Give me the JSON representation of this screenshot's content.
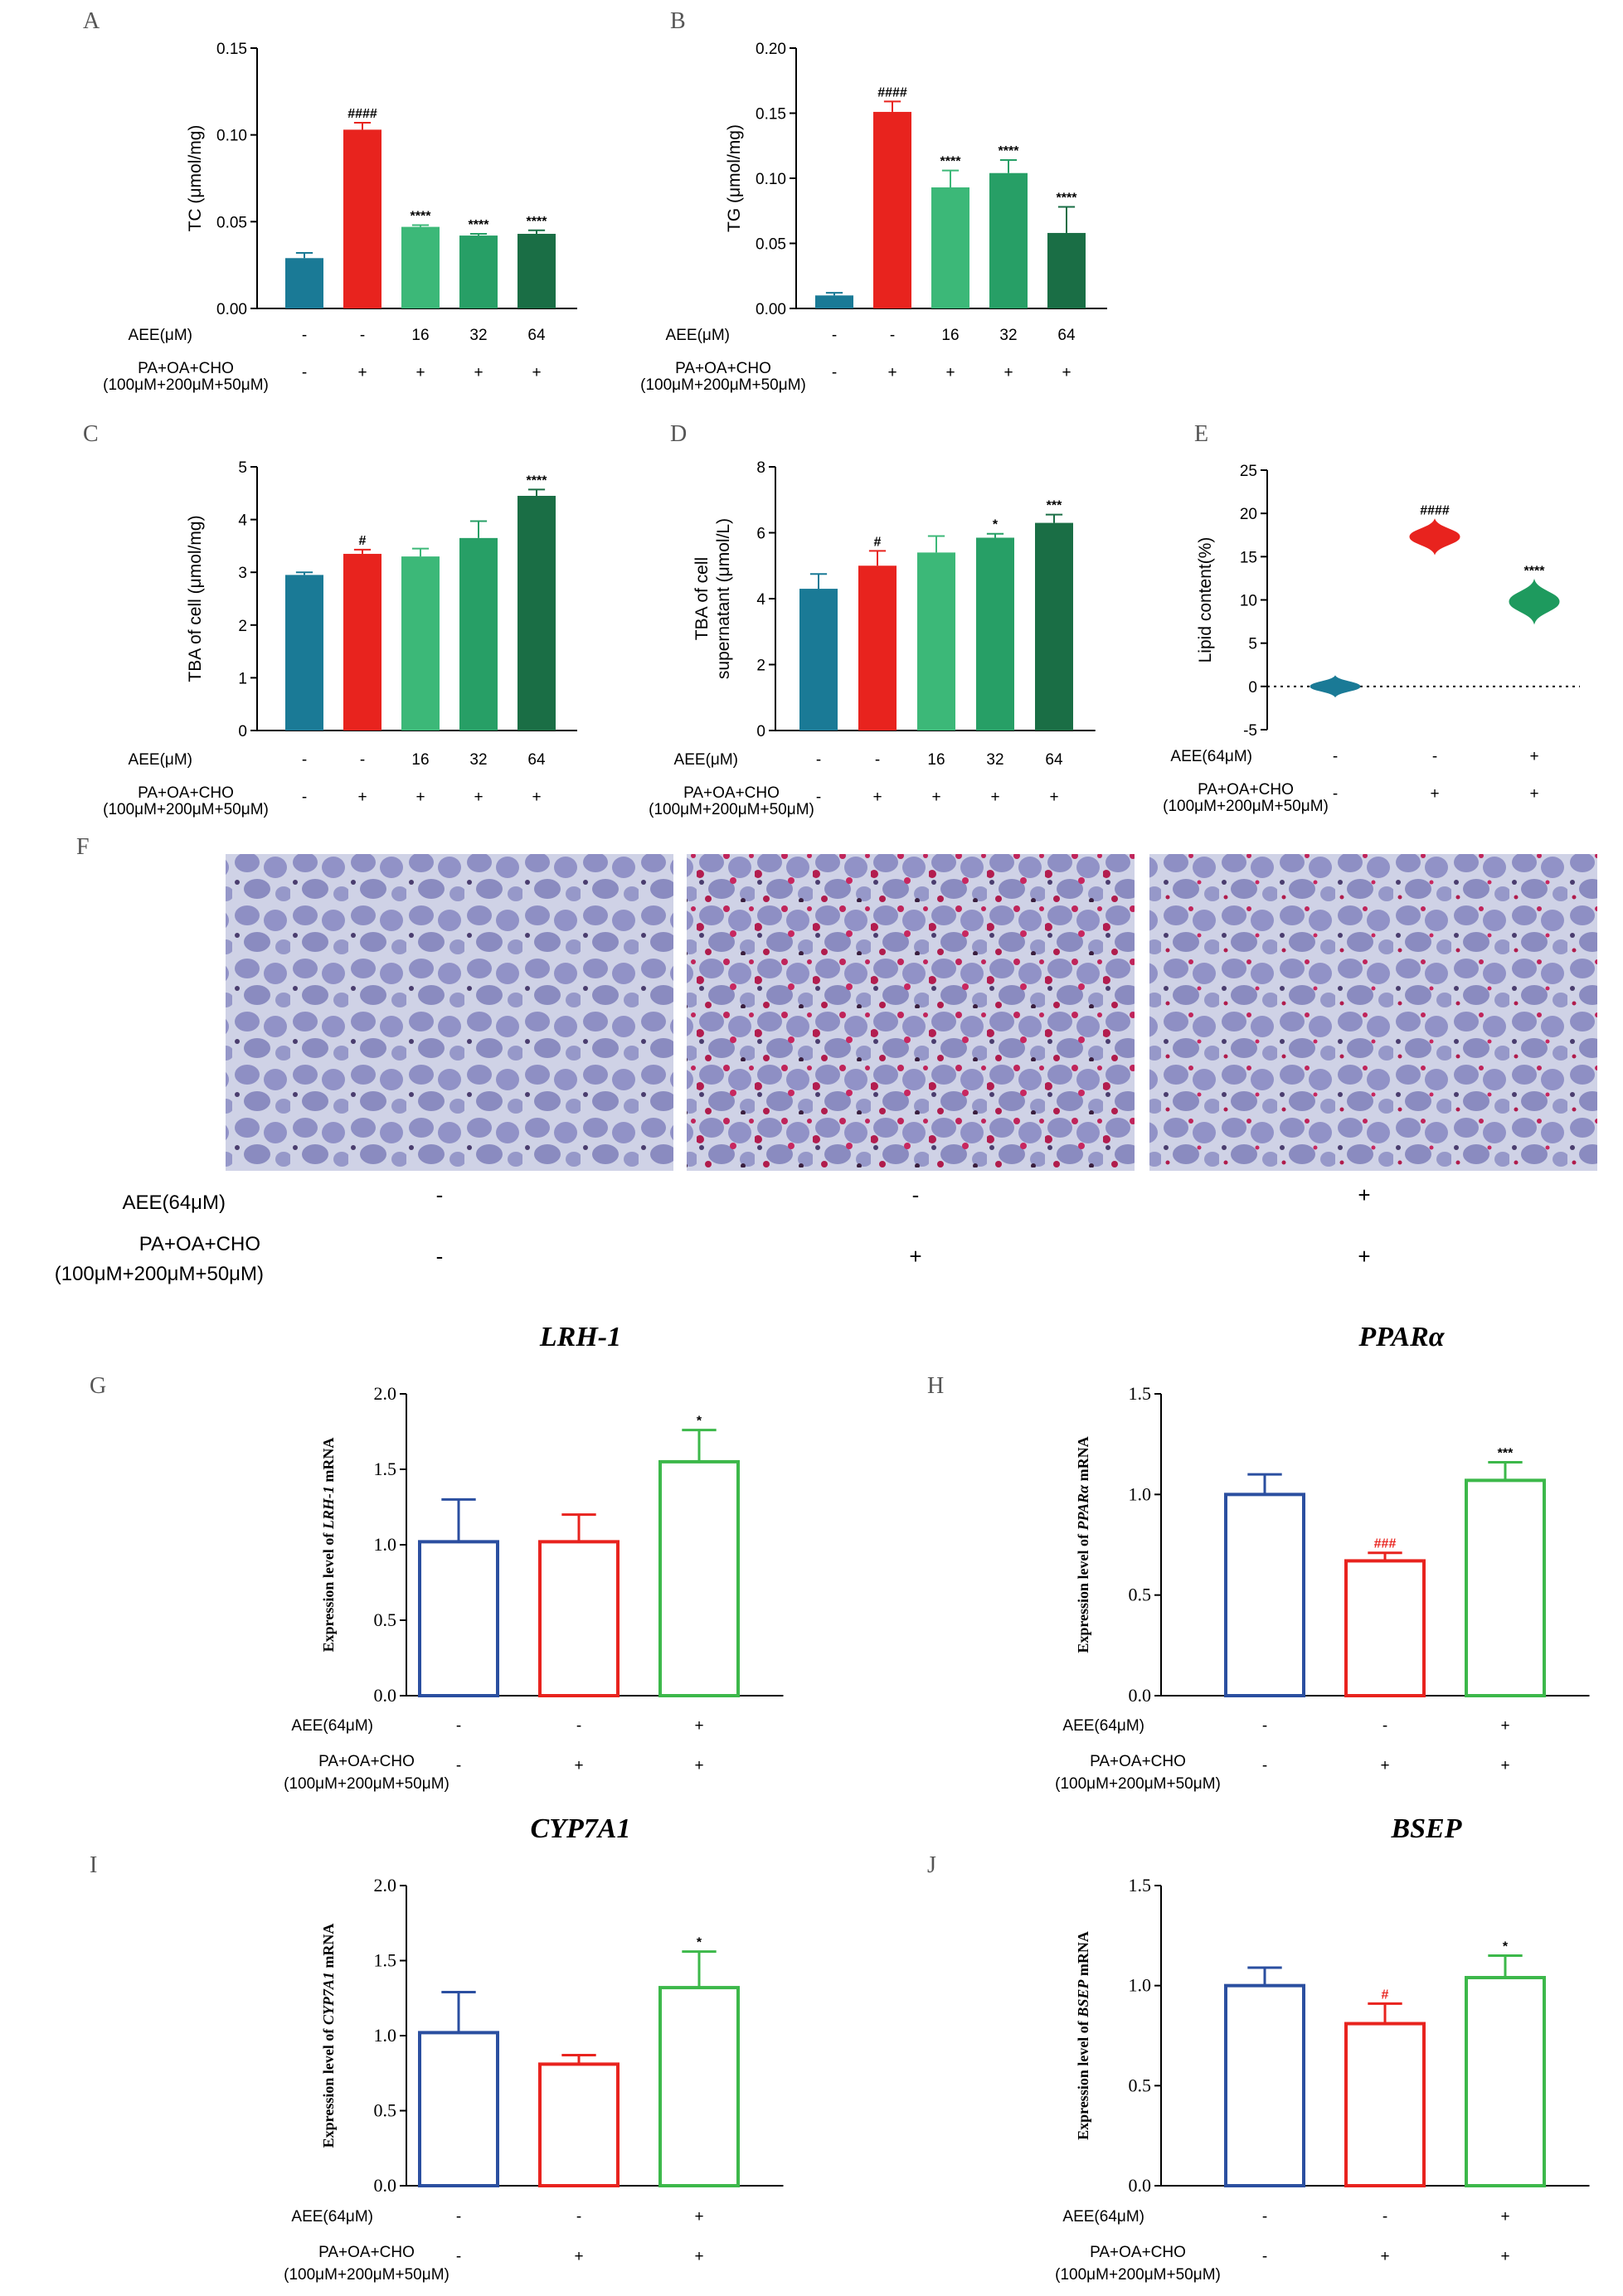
{
  "figure": {
    "micrograph_labels": {
      "aee": "AEE(64μM)",
      "pa1": "PA+OA+CHO",
      "pa2": "(100μM+200μM+50μM)"
    },
    "micrograph_marks": {
      "aee": [
        "-",
        "-",
        "+"
      ],
      "pa": [
        "-",
        "+",
        "+"
      ]
    },
    "panel_F_letter": "F"
  },
  "chart_data": [
    {
      "panel": "A",
      "type": "bar",
      "ylabel": "TC (μmol/mg)",
      "ylim": [
        0,
        0.15
      ],
      "yticks": [
        "0.00",
        "0.05",
        "0.10",
        "0.15"
      ],
      "values": [
        0.029,
        0.103,
        0.047,
        0.042,
        0.043
      ],
      "errors": [
        0.003,
        0.004,
        0.001,
        0.001,
        0.002
      ],
      "sig": [
        "",
        "####",
        "****",
        "****",
        "****"
      ],
      "colors": [
        "#1a7a96",
        "#e8231e",
        "#3cb878",
        "#279f66",
        "#1a6e45"
      ],
      "cond_labels": [
        "AEE(μM)",
        "PA+OA+CHO",
        "(100μM+200μM+50μM)"
      ],
      "aee": [
        "-",
        "-",
        "16",
        "32",
        "64"
      ],
      "pa": [
        "-",
        "+",
        "+",
        "+",
        "+"
      ],
      "style": "filled"
    },
    {
      "panel": "B",
      "type": "bar",
      "ylabel": "TG (μmol/mg)",
      "ylim": [
        0,
        0.2
      ],
      "yticks": [
        "0.00",
        "0.05",
        "0.10",
        "0.15",
        "0.20"
      ],
      "values": [
        0.01,
        0.151,
        0.093,
        0.104,
        0.058
      ],
      "errors": [
        0.002,
        0.008,
        0.013,
        0.01,
        0.02
      ],
      "sig": [
        "",
        "####",
        "****",
        "****",
        "****"
      ],
      "colors": [
        "#1a7a96",
        "#e8231e",
        "#3cb878",
        "#279f66",
        "#1a6e45"
      ],
      "cond_labels": [
        "AEE(μM)",
        "PA+OA+CHO",
        "(100μM+200μM+50μM)"
      ],
      "aee": [
        "-",
        "-",
        "16",
        "32",
        "64"
      ],
      "pa": [
        "-",
        "+",
        "+",
        "+",
        "+"
      ],
      "style": "filled"
    },
    {
      "panel": "C",
      "type": "bar",
      "ylabel": "TBA of cell (μmol/mg)",
      "ylim": [
        0,
        5
      ],
      "yticks": [
        "0",
        "1",
        "2",
        "3",
        "4",
        "5"
      ],
      "values": [
        2.95,
        3.35,
        3.3,
        3.65,
        4.45
      ],
      "errors": [
        0.05,
        0.08,
        0.15,
        0.32,
        0.12
      ],
      "sig": [
        "",
        "#",
        "",
        "",
        "****"
      ],
      "colors": [
        "#1a7a96",
        "#e8231e",
        "#3cb878",
        "#279f66",
        "#1a6e45"
      ],
      "cond_labels": [
        "AEE(μM)",
        "PA+OA+CHO",
        "(100μM+200μM+50μM)"
      ],
      "aee": [
        "-",
        "-",
        "16",
        "32",
        "64"
      ],
      "pa": [
        "-",
        "+",
        "+",
        "+",
        "+"
      ],
      "style": "filled"
    },
    {
      "panel": "D",
      "type": "bar",
      "ylabel": "TBA of cell",
      "ylabel2": "supernatant (μmol/L)",
      "ylim": [
        0,
        8
      ],
      "yticks": [
        "0",
        "2",
        "4",
        "6",
        "8"
      ],
      "values": [
        4.3,
        5.0,
        5.4,
        5.85,
        6.3
      ],
      "errors": [
        0.45,
        0.45,
        0.5,
        0.12,
        0.25
      ],
      "sig": [
        "",
        "#",
        "",
        "*",
        "***"
      ],
      "colors": [
        "#1a7a96",
        "#e8231e",
        "#3cb878",
        "#279f66",
        "#1a6e45"
      ],
      "cond_labels": [
        "AEE(μM)",
        "PA+OA+CHO",
        "(100μM+200μM+50μM)"
      ],
      "aee": [
        "-",
        "-",
        "16",
        "32",
        "64"
      ],
      "pa": [
        "-",
        "+",
        "+",
        "+",
        "+"
      ],
      "style": "filled"
    },
    {
      "panel": "E",
      "type": "violin",
      "ylabel": "Lipid content(%)",
      "ylim": [
        -5,
        25
      ],
      "yticks": [
        "-5",
        "0",
        "5",
        "10",
        "15",
        "20",
        "25"
      ],
      "values": [
        0,
        17.3,
        9.8
      ],
      "spread": [
        1.2,
        2.0,
        2.5
      ],
      "sig": [
        "",
        "####",
        "****"
      ],
      "colors": [
        "#1a7a96",
        "#e8231e",
        "#1e9a5e"
      ],
      "cond_labels": [
        "AEE(64μM)",
        "PA+OA+CHO",
        "(100μM+200μM+50μM)"
      ],
      "aee": [
        "-",
        "-",
        "+"
      ],
      "pa": [
        "-",
        "+",
        "+"
      ]
    },
    {
      "panel": "G",
      "type": "bar",
      "title": "LRH-1",
      "ylabel_pre": "Expression level of ",
      "ylabel_gene": "LRH-1",
      "ylabel_post": " mRNA",
      "ylim": [
        0,
        2
      ],
      "yticks": [
        "0.0",
        "0.5",
        "1.0",
        "1.5",
        "2.0"
      ],
      "values": [
        1.02,
        1.02,
        1.55
      ],
      "errors": [
        0.28,
        0.18,
        0.21
      ],
      "sig": [
        "",
        "",
        "*"
      ],
      "sig_colors": [
        "#000",
        "#000",
        "#000"
      ],
      "colors": [
        "#2b4fa0",
        "#e8231e",
        "#3cb84a"
      ],
      "cond_labels": [
        "AEE(64μM)",
        "PA+OA+CHO",
        "(100μM+200μM+50μM)"
      ],
      "aee": [
        "-",
        "-",
        "+"
      ],
      "pa": [
        "-",
        "+",
        "+"
      ],
      "style": "outline"
    },
    {
      "panel": "H",
      "type": "bar",
      "title": "PPARα",
      "ylabel_pre": "Expression level of ",
      "ylabel_gene": "PPARα",
      "ylabel_post": " mRNA",
      "ylim": [
        0,
        1.5
      ],
      "yticks": [
        "0.0",
        "0.5",
        "1.0",
        "1.5"
      ],
      "values": [
        1.0,
        0.67,
        1.07
      ],
      "errors": [
        0.1,
        0.04,
        0.09
      ],
      "sig": [
        "",
        "###",
        "***"
      ],
      "sig_colors": [
        "#000",
        "#e8231e",
        "#000"
      ],
      "colors": [
        "#2b4fa0",
        "#e8231e",
        "#3cb84a"
      ],
      "cond_labels": [
        "AEE(64μM)",
        "PA+OA+CHO",
        "(100μM+200μM+50μM)"
      ],
      "aee": [
        "-",
        "-",
        "+"
      ],
      "pa": [
        "-",
        "+",
        "+"
      ],
      "style": "outline"
    },
    {
      "panel": "I",
      "type": "bar",
      "title": "CYP7A1",
      "ylabel_pre": "Expression level of ",
      "ylabel_gene": "CYP7A1",
      "ylabel_post": " mRNA",
      "ylim": [
        0,
        2
      ],
      "yticks": [
        "0.0",
        "0.5",
        "1.0",
        "1.5",
        "2.0"
      ],
      "values": [
        1.02,
        0.81,
        1.32
      ],
      "errors": [
        0.27,
        0.06,
        0.24
      ],
      "sig": [
        "",
        "",
        "*"
      ],
      "sig_colors": [
        "#000",
        "#000",
        "#000"
      ],
      "colors": [
        "#2b4fa0",
        "#e8231e",
        "#3cb84a"
      ],
      "cond_labels": [
        "AEE(64μM)",
        "PA+OA+CHO",
        "(100μM+200μM+50μM)"
      ],
      "aee": [
        "-",
        "-",
        "+"
      ],
      "pa": [
        "-",
        "+",
        "+"
      ],
      "style": "outline"
    },
    {
      "panel": "J",
      "type": "bar",
      "title": "BSEP",
      "ylabel_pre": "Expression level of ",
      "ylabel_gene": "BSEP",
      "ylabel_post": " mRNA",
      "ylim": [
        0,
        1.5
      ],
      "yticks": [
        "0.0",
        "0.5",
        "1.0",
        "1.5"
      ],
      "values": [
        1.0,
        0.81,
        1.04
      ],
      "errors": [
        0.09,
        0.1,
        0.11
      ],
      "sig": [
        "",
        "#",
        "*"
      ],
      "sig_colors": [
        "#000",
        "#e8231e",
        "#000"
      ],
      "colors": [
        "#2b4fa0",
        "#e8231e",
        "#3cb84a"
      ],
      "cond_labels": [
        "AEE(64μM)",
        "PA+OA+CHO",
        "(100μM+200μM+50μM)"
      ],
      "aee": [
        "-",
        "-",
        "+"
      ],
      "pa": [
        "-",
        "+",
        "+"
      ],
      "style": "outline"
    }
  ]
}
